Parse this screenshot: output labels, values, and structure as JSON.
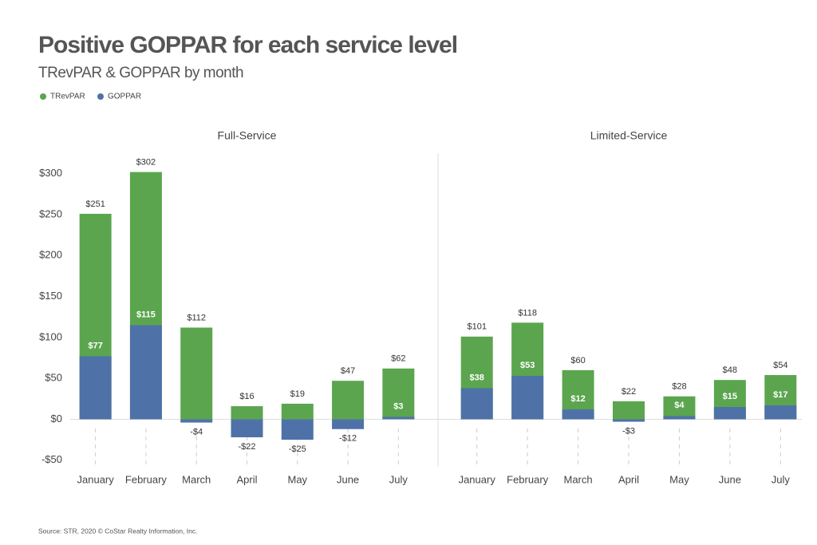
{
  "chart_data": {
    "type": "bar",
    "title": "Positive GOPPAR for each service level",
    "subtitle": "TRevPAR & GOPPAR by month",
    "series": [
      {
        "name": "TRevPAR",
        "color": "#5ba54f"
      },
      {
        "name": "GOPPAR",
        "color": "#4e72a7"
      }
    ],
    "ylim": [
      -60,
      325
    ],
    "yticks": [
      {
        "value": -50,
        "label": "-$50"
      },
      {
        "value": 0,
        "label": "$0"
      },
      {
        "value": 50,
        "label": "$50"
      },
      {
        "value": 100,
        "label": "$100"
      },
      {
        "value": 150,
        "label": "$150"
      },
      {
        "value": 200,
        "label": "$200"
      },
      {
        "value": 250,
        "label": "$250"
      },
      {
        "value": 300,
        "label": "$300"
      }
    ],
    "panels": [
      {
        "title": "Full-Service",
        "categories": [
          "January",
          "February",
          "March",
          "April",
          "May",
          "June",
          "July"
        ],
        "series": [
          {
            "values": [
              251,
              302,
              112,
              16,
              19,
              47,
              62
            ],
            "value_labels": [
              "$251",
              "$302",
              "$112",
              "$16",
              "$19",
              "$47",
              "$62"
            ]
          },
          {
            "values": [
              77,
              115,
              -4,
              -22,
              -25,
              -12,
              3
            ],
            "value_labels": [
              "$77",
              "$115",
              "-$4",
              "-$22",
              "-$25",
              "-$12",
              "$3"
            ]
          }
        ]
      },
      {
        "title": "Limited-Service",
        "categories": [
          "January",
          "February",
          "March",
          "April",
          "May",
          "June",
          "July"
        ],
        "series": [
          {
            "values": [
              101,
              118,
              60,
              22,
              28,
              48,
              54
            ],
            "value_labels": [
              "$101",
              "$118",
              "$60",
              "$22",
              "$28",
              "$48",
              "$54"
            ]
          },
          {
            "values": [
              38,
              53,
              12,
              -3,
              4,
              15,
              17
            ],
            "value_labels": [
              "$38",
              "$53",
              "$12",
              "-$3",
              "$4",
              "$15",
              "$17"
            ]
          }
        ]
      }
    ],
    "source": "Source: STR, 2020 © CoStar Realty Information, Inc."
  }
}
